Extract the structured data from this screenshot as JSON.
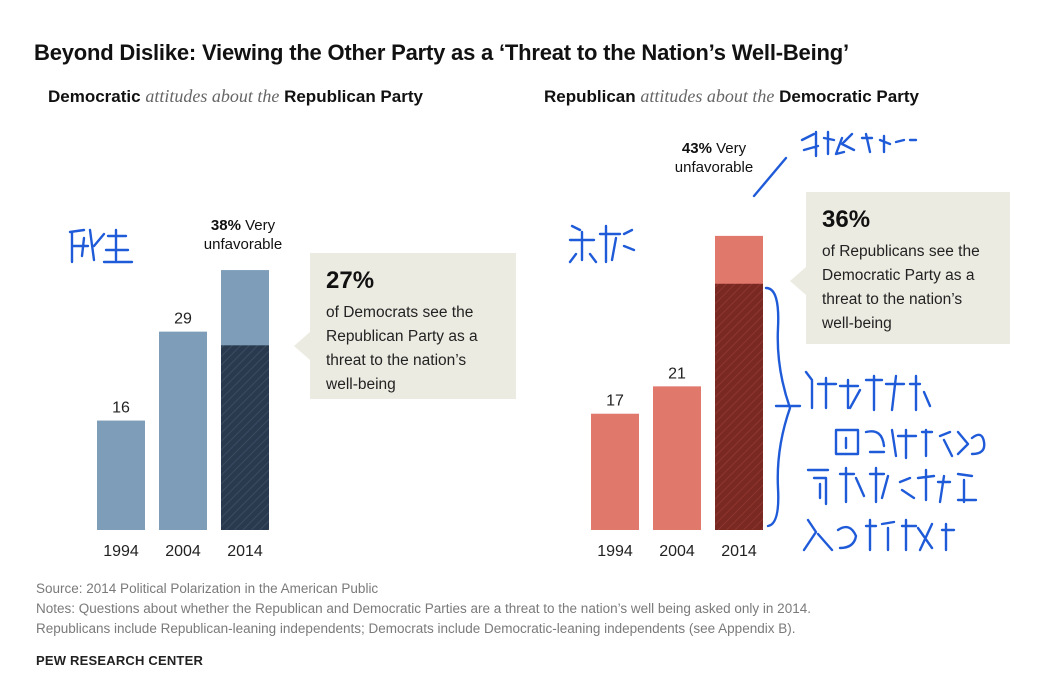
{
  "title": "Beyond Dislike: Viewing the Other Party as a ‘Threat to the Nation’s Well-Being’",
  "panels": [
    {
      "subtitle_bold1": "Democratic",
      "subtitle_italic": "attitudes about the",
      "subtitle_bold2": "Republican Party",
      "annotation_pct": "38%",
      "annotation_text1": "Very",
      "annotation_text2": "unfavorable",
      "callout_pct": "27%",
      "callout_text": "of Democrats see the Republican Party as a threat to the nation’s well-being"
    },
    {
      "subtitle_bold1": "Republican",
      "subtitle_italic": "attitudes about the",
      "subtitle_bold2": "Democratic Party",
      "annotation_pct": "43%",
      "annotation_text1": "Very",
      "annotation_text2": "unfavorable",
      "callout_pct": "36%",
      "callout_text": "of Republicans see the Democratic Party as a threat to the nation’s well-being"
    }
  ],
  "chart_data": [
    {
      "type": "bar",
      "categories": [
        "1994",
        "2004",
        "2014"
      ],
      "values": [
        16,
        29,
        38
      ],
      "value_labels": [
        "16",
        "29",
        ""
      ],
      "threat_2014": 27,
      "colors": {
        "bar": "#7d9db8",
        "threat": "#2a3a4e"
      }
    },
    {
      "type": "bar",
      "categories": [
        "1994",
        "2004",
        "2014"
      ],
      "values": [
        17,
        21,
        43
      ],
      "value_labels": [
        "17",
        "21",
        ""
      ],
      "threat_2014": 36,
      "colors": {
        "bar": "#e0786c",
        "threat": "#7a2822"
      }
    }
  ],
  "footer": {
    "source": "Source: 2014 Political Polarization in the American Public",
    "note1": "Notes: Questions about whether the Republican and Democratic Parties are a threat to the nation’s well being asked only in 2014.",
    "note2": "Republicans include Republican-leaning independents; Democrats include Democratic-leaning independents (see Appendix B).",
    "brand": "PEW RESEARCH CENTER"
  }
}
